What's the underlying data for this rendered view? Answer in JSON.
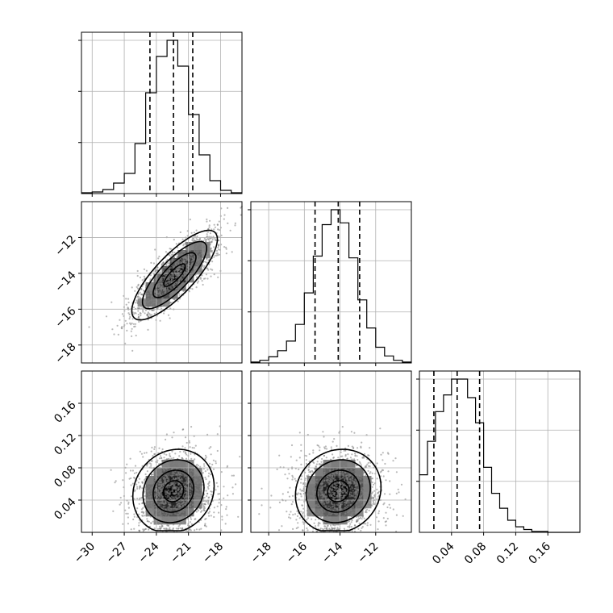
{
  "chart_data": {
    "type": "corner",
    "parameters": [
      {
        "key": "p0",
        "xlim": [
          -31,
          -16
        ],
        "ticks": [
          -30,
          -27,
          -24,
          -21,
          -18
        ],
        "tick_labels": [
          "−30",
          "−27",
          "−24",
          "−21",
          "−18"
        ],
        "quantiles": [
          -24.6,
          -22.4,
          -20.6
        ]
      },
      {
        "key": "p1",
        "xlim": [
          -19,
          -10
        ],
        "ticks": [
          -18,
          -16,
          -14,
          -12
        ],
        "tick_labels": [
          "−18",
          "−16",
          "−14",
          "−12"
        ],
        "quantiles": [
          -15.4,
          -14.1,
          -12.9
        ]
      },
      {
        "key": "p2",
        "xlim": [
          0.0,
          0.2
        ],
        "ticks": [
          0.04,
          0.08,
          0.12,
          0.16
        ],
        "tick_labels": [
          "0.04",
          "0.08",
          "0.12",
          "0.16"
        ],
        "quantiles": [
          0.018,
          0.047,
          0.075
        ]
      }
    ],
    "histograms": [
      {
        "param": "p0",
        "bin_edges": [
          -31,
          -30,
          -29,
          -28,
          -27,
          -26,
          -25,
          -24,
          -23,
          -22,
          -21,
          -20,
          -19,
          -18,
          -17,
          -16
        ],
        "counts": [
          1,
          2,
          5,
          13,
          25,
          62,
          125,
          170,
          190,
          158,
          98,
          48,
          16,
          4,
          1
        ]
      },
      {
        "param": "p1",
        "bin_edges": [
          -19,
          -18.5,
          -18,
          -17.5,
          -17,
          -16.5,
          -16,
          -15.5,
          -15,
          -14.5,
          -14,
          -13.5,
          -13,
          -12.5,
          -12,
          -11.5,
          -11,
          -10.5,
          -10
        ],
        "counts": [
          1,
          3,
          7,
          14,
          25,
          44,
          80,
          122,
          158,
          175,
          160,
          120,
          72,
          40,
          18,
          8,
          3,
          1
        ]
      },
      {
        "param": "p2",
        "bin_edges": [
          0.0,
          0.01,
          0.02,
          0.03,
          0.04,
          0.05,
          0.06,
          0.07,
          0.08,
          0.09,
          0.1,
          0.11,
          0.12,
          0.13,
          0.14,
          0.15,
          0.16,
          0.17,
          0.18,
          0.19,
          0.2
        ],
        "counts": [
          62,
          98,
          130,
          148,
          165,
          165,
          145,
          118,
          70,
          42,
          26,
          13,
          6,
          3,
          1,
          1,
          0,
          0,
          0,
          0
        ]
      }
    ],
    "joint": [
      {
        "x": "p0",
        "y": "p1",
        "center": [
          -22.3,
          -14.1
        ],
        "sigma": [
          2.0,
          1.25
        ],
        "rho": 0.8
      },
      {
        "x": "p0",
        "y": "p2",
        "center": [
          -22.4,
          0.051
        ],
        "sigma": [
          1.9,
          0.026
        ],
        "rho": 0.12
      },
      {
        "x": "p1",
        "y": "p2",
        "center": [
          -14.1,
          0.051
        ],
        "sigma": [
          1.2,
          0.026
        ],
        "rho": 0.1
      }
    ],
    "contour_levels_sigma": [
      0.5,
      1.0,
      1.5,
      2.0
    ],
    "grid": true,
    "colors": {
      "points": "#808080",
      "lines": "#000000"
    }
  }
}
